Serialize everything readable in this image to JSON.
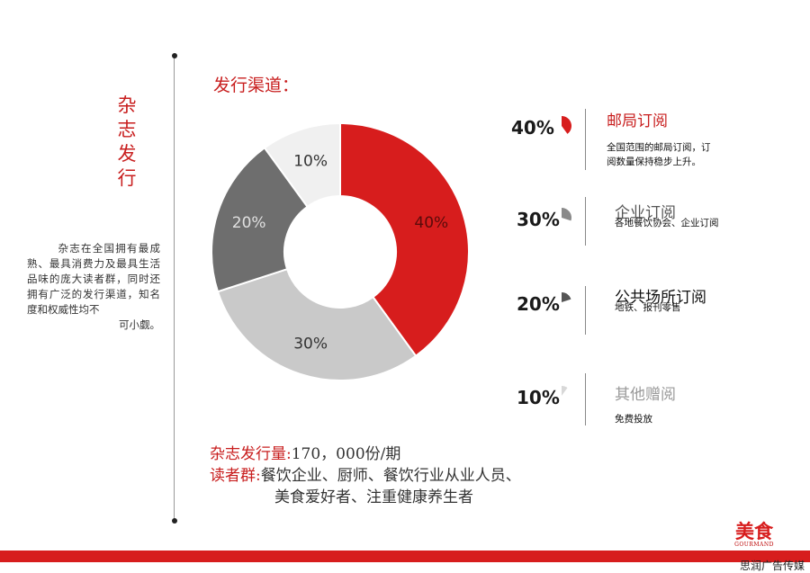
{
  "sidebar": {
    "title": "杂志发行",
    "description": "杂志在全国拥有最成熟、最具消费力及最具生活品味的庞大读者群，同时还拥有广泛的发行渠道，知名度和权威性均不",
    "description_end": "可小觑。"
  },
  "section_title": "发行渠道：",
  "chart_data": {
    "type": "pie",
    "donut": true,
    "slices": [
      {
        "label": "40%",
        "value": 40,
        "color": "#d71d1d",
        "text_color": "#5a0b0b"
      },
      {
        "label": "30%",
        "value": 30,
        "color": "#c9c9c9",
        "text_color": "#333333"
      },
      {
        "label": "20%",
        "value": 20,
        "color": "#6e6e6e",
        "text_color": "#e0e0e0"
      },
      {
        "label": "10%",
        "value": 10,
        "color": "#f0f0f0",
        "text_color": "#333333"
      }
    ]
  },
  "channels": [
    {
      "percent": "40%",
      "title": "邮局订阅",
      "title_color": "#c81e1e",
      "icon_color": "#d71d1d",
      "desc": [
        "全国范围的邮局订阅，订",
        "阅数量保持稳步上升。"
      ],
      "icon": "red-pie-icon"
    },
    {
      "percent": "30%",
      "title": "企业订阅",
      "title_color": "#555555",
      "icon_color": "#8a8a8a",
      "desc": [
        "各地餐饮协会、企业订阅"
      ],
      "icon": "gray-pie-icon"
    },
    {
      "percent": "20%",
      "title": "公共场所订阅",
      "title_color": "#111111",
      "icon_color": "#555555",
      "desc": [
        "地铁、报刊零售"
      ],
      "icon": "dark-pie-icon"
    },
    {
      "percent": "10%",
      "title": "其他赠阅",
      "title_color": "#9a9a9a",
      "icon_color": "#d8d8d8",
      "desc": [
        "免费投放"
      ],
      "icon": "light-pie-icon"
    }
  ],
  "stats": {
    "circulation_label": "杂志发行量:",
    "circulation_value": "170，000份/期",
    "readers_label": "读者群:",
    "readers_line1": "餐饮企业、厨师、餐饮行业从业人员、",
    "readers_line2": "美食爱好者、注重健康养生者"
  },
  "logo": {
    "main": "美食",
    "sub": "GOURMAND"
  },
  "footer": "思润广告传媒"
}
